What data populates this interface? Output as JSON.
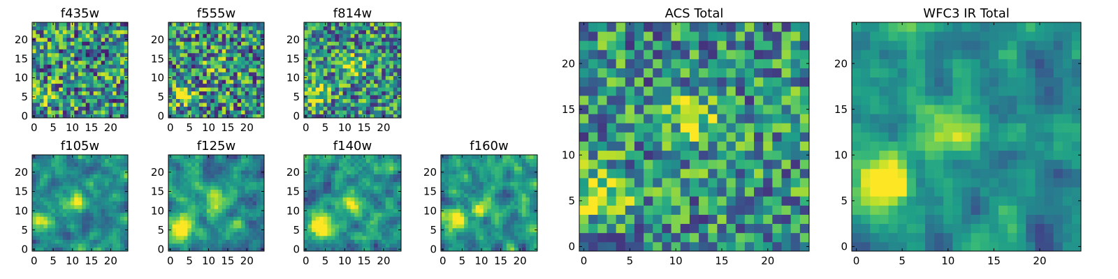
{
  "chart_data": [
    {
      "type": "heatmap",
      "title": "f435w",
      "xlim": [
        -0.5,
        24.5
      ],
      "ylim": [
        -0.5,
        24.5
      ],
      "xticks": [
        0,
        5,
        10,
        15,
        20
      ],
      "yticks": [
        0,
        5,
        10,
        15,
        20
      ],
      "grid_size": 25,
      "colormap": "viridis",
      "seed": 11,
      "smooth": 0,
      "noise": 0.55,
      "bright_spots": [
        [
          3,
          5,
          0.35
        ]
      ]
    },
    {
      "type": "heatmap",
      "title": "f555w",
      "xlim": [
        -0.5,
        24.5
      ],
      "ylim": [
        -0.5,
        24.5
      ],
      "xticks": [
        0,
        5,
        10,
        15,
        20
      ],
      "yticks": [
        0,
        5,
        10,
        15,
        20
      ],
      "grid_size": 25,
      "colormap": "viridis",
      "seed": 23,
      "smooth": 0,
      "noise": 0.55,
      "bright_spots": [
        [
          3,
          6,
          0.4
        ],
        [
          12,
          13,
          0.25
        ]
      ]
    },
    {
      "type": "heatmap",
      "title": "f814w",
      "xlim": [
        -0.5,
        24.5
      ],
      "ylim": [
        -0.5,
        24.5
      ],
      "xticks": [
        0,
        5,
        10,
        15,
        20
      ],
      "yticks": [
        0,
        5,
        10,
        15,
        20
      ],
      "grid_size": 25,
      "colormap": "viridis",
      "seed": 37,
      "smooth": 0,
      "noise": 0.5,
      "bright_spots": [
        [
          3,
          6,
          0.45
        ],
        [
          12,
          13,
          0.4
        ]
      ]
    },
    {
      "type": "heatmap",
      "title": "f105w",
      "xlim": [
        -0.5,
        24.5
      ],
      "ylim": [
        -0.5,
        24.5
      ],
      "xticks": [
        0,
        5,
        10,
        15,
        20
      ],
      "yticks": [
        0,
        5,
        10,
        15,
        20
      ],
      "grid_size": 25,
      "colormap": "viridis",
      "seed": 41,
      "smooth": 1,
      "noise": 0.4,
      "bright_spots": [
        [
          2,
          7,
          0.55
        ],
        [
          11,
          13,
          0.5
        ]
      ]
    },
    {
      "type": "heatmap",
      "title": "f125w",
      "xlim": [
        -0.5,
        24.5
      ],
      "ylim": [
        -0.5,
        24.5
      ],
      "xticks": [
        0,
        5,
        10,
        15,
        20
      ],
      "yticks": [
        0,
        5,
        10,
        15,
        20
      ],
      "grid_size": 25,
      "colormap": "viridis",
      "seed": 53,
      "smooth": 1,
      "noise": 0.4,
      "bright_spots": [
        [
          3,
          5,
          0.6
        ],
        [
          12,
          12,
          0.4
        ]
      ]
    },
    {
      "type": "heatmap",
      "title": "f140w",
      "xlim": [
        -0.5,
        24.5
      ],
      "ylim": [
        -0.5,
        24.5
      ],
      "xticks": [
        0,
        5,
        10,
        15,
        20
      ],
      "yticks": [
        0,
        5,
        10,
        15,
        20
      ],
      "grid_size": 25,
      "colormap": "viridis",
      "seed": 67,
      "smooth": 1,
      "noise": 0.4,
      "bright_spots": [
        [
          3,
          6,
          0.6
        ],
        [
          11,
          12,
          0.4
        ]
      ]
    },
    {
      "type": "heatmap",
      "title": "f160w",
      "xlim": [
        -0.5,
        24.5
      ],
      "ylim": [
        -0.5,
        24.5
      ],
      "xticks": [
        0,
        5,
        10,
        15,
        20
      ],
      "yticks": [
        0,
        5,
        10,
        15,
        20
      ],
      "grid_size": 25,
      "colormap": "viridis",
      "seed": 79,
      "smooth": 1,
      "noise": 0.45,
      "bright_spots": [
        [
          3,
          7,
          0.6
        ],
        [
          10,
          11,
          0.4
        ]
      ]
    },
    {
      "type": "heatmap",
      "title": "ACS Total",
      "xlim": [
        -0.5,
        24.5
      ],
      "ylim": [
        -0.5,
        24.5
      ],
      "xticks": [
        0,
        5,
        10,
        15,
        20
      ],
      "yticks": [
        0,
        5,
        10,
        15,
        20
      ],
      "grid_size": 25,
      "colormap": "viridis",
      "seed": 97,
      "smooth": 0,
      "noise": 0.45,
      "bright_spots": [
        [
          2,
          6,
          0.45
        ],
        [
          12,
          14,
          0.35
        ]
      ]
    },
    {
      "type": "heatmap",
      "title": "WFC3 IR Total",
      "xlim": [
        -0.5,
        24.5
      ],
      "ylim": [
        -0.5,
        24.5
      ],
      "xticks": [
        0,
        5,
        10,
        15,
        20
      ],
      "yticks": [
        0,
        5,
        10,
        15,
        20
      ],
      "grid_size": 25,
      "colormap": "viridis",
      "seed": 131,
      "smooth": 1,
      "noise": 0.35,
      "bright_spots": [
        [
          3,
          7,
          0.7
        ],
        [
          11,
          13,
          0.45
        ]
      ]
    }
  ]
}
